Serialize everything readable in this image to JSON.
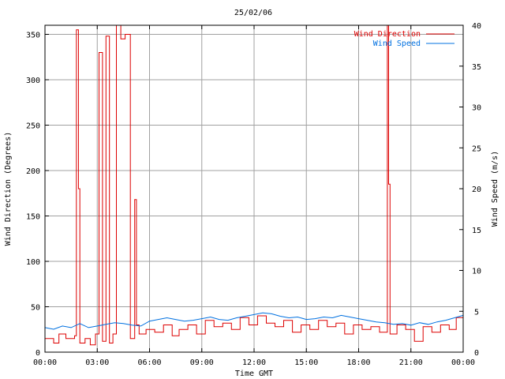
{
  "chart_data": {
    "type": "line",
    "title": "25/02/06",
    "xlabel": "Time GMT",
    "ylabel_left": "Wind Direction (Degrees)",
    "ylabel_right": "Wind Speed (m/s)",
    "x_unit": "hours GMT",
    "xlim": [
      0,
      24
    ],
    "x_ticks": [
      0,
      3,
      6,
      9,
      12,
      15,
      18,
      21,
      24
    ],
    "x_tick_labels": [
      "00:00",
      "03:00",
      "06:00",
      "09:00",
      "12:00",
      "15:00",
      "18:00",
      "21:00",
      "00:00"
    ],
    "ylim_left": [
      0,
      360
    ],
    "y_ticks_left": [
      0,
      50,
      100,
      150,
      200,
      250,
      300,
      350
    ],
    "ylim_right": [
      0,
      40
    ],
    "y_ticks_right": [
      0,
      5,
      10,
      15,
      20,
      25,
      30,
      35,
      40
    ],
    "grid": true,
    "legend_position": "top-right",
    "series": [
      {
        "name": "Wind Direction",
        "axis": "left",
        "color": "#dd0000",
        "style": "step",
        "x": [
          0.0,
          0.5,
          0.8,
          1.2,
          1.7,
          1.8,
          1.92,
          2.0,
          2.3,
          2.6,
          2.9,
          3.1,
          3.3,
          3.5,
          3.7,
          3.9,
          4.1,
          4.35,
          4.6,
          4.9,
          5.15,
          5.25,
          5.4,
          5.8,
          6.3,
          6.8,
          7.3,
          7.7,
          8.2,
          8.7,
          9.2,
          9.7,
          10.2,
          10.7,
          11.2,
          11.7,
          12.2,
          12.7,
          13.2,
          13.7,
          14.2,
          14.7,
          15.2,
          15.7,
          16.2,
          16.7,
          17.2,
          17.7,
          18.2,
          18.7,
          19.2,
          19.65,
          19.72,
          19.8,
          20.2,
          20.7,
          21.2,
          21.7,
          22.2,
          22.7,
          23.2,
          23.6
        ],
        "y": [
          15,
          10,
          20,
          15,
          18,
          355,
          180,
          10,
          15,
          8,
          20,
          330,
          12,
          348,
          10,
          20,
          360,
          345,
          350,
          15,
          168,
          30,
          20,
          25,
          22,
          30,
          18,
          25,
          30,
          20,
          35,
          28,
          32,
          25,
          38,
          30,
          40,
          32,
          28,
          35,
          22,
          30,
          25,
          35,
          28,
          32,
          20,
          30,
          25,
          28,
          22,
          360,
          185,
          20,
          30,
          25,
          12,
          28,
          22,
          30,
          25,
          38
        ]
      },
      {
        "name": "Wind Speed",
        "axis": "right",
        "color": "#0070e0",
        "style": "line",
        "x": [
          0.0,
          0.5,
          1.0,
          1.5,
          2.0,
          2.5,
          3.0,
          3.5,
          4.0,
          4.5,
          5.0,
          5.5,
          6.0,
          6.5,
          7.0,
          7.5,
          8.0,
          8.5,
          9.0,
          9.5,
          10.0,
          10.5,
          11.0,
          11.5,
          12.0,
          12.5,
          13.0,
          13.5,
          14.0,
          14.5,
          15.0,
          15.5,
          16.0,
          16.5,
          17.0,
          17.5,
          18.0,
          18.5,
          19.0,
          19.5,
          20.0,
          20.5,
          21.0,
          21.5,
          22.0,
          22.5,
          23.0,
          23.5,
          24.0
        ],
        "y": [
          3.0,
          2.8,
          3.2,
          3.0,
          3.5,
          3.0,
          3.2,
          3.4,
          3.6,
          3.5,
          3.3,
          3.2,
          3.8,
          4.0,
          4.2,
          4.0,
          3.8,
          3.9,
          4.1,
          4.3,
          4.0,
          3.9,
          4.2,
          4.4,
          4.6,
          4.8,
          4.7,
          4.4,
          4.2,
          4.3,
          4.0,
          4.1,
          4.3,
          4.2,
          4.5,
          4.3,
          4.1,
          3.9,
          3.7,
          3.6,
          3.4,
          3.5,
          3.3,
          3.6,
          3.4,
          3.7,
          3.9,
          4.2,
          4.5
        ]
      }
    ]
  }
}
